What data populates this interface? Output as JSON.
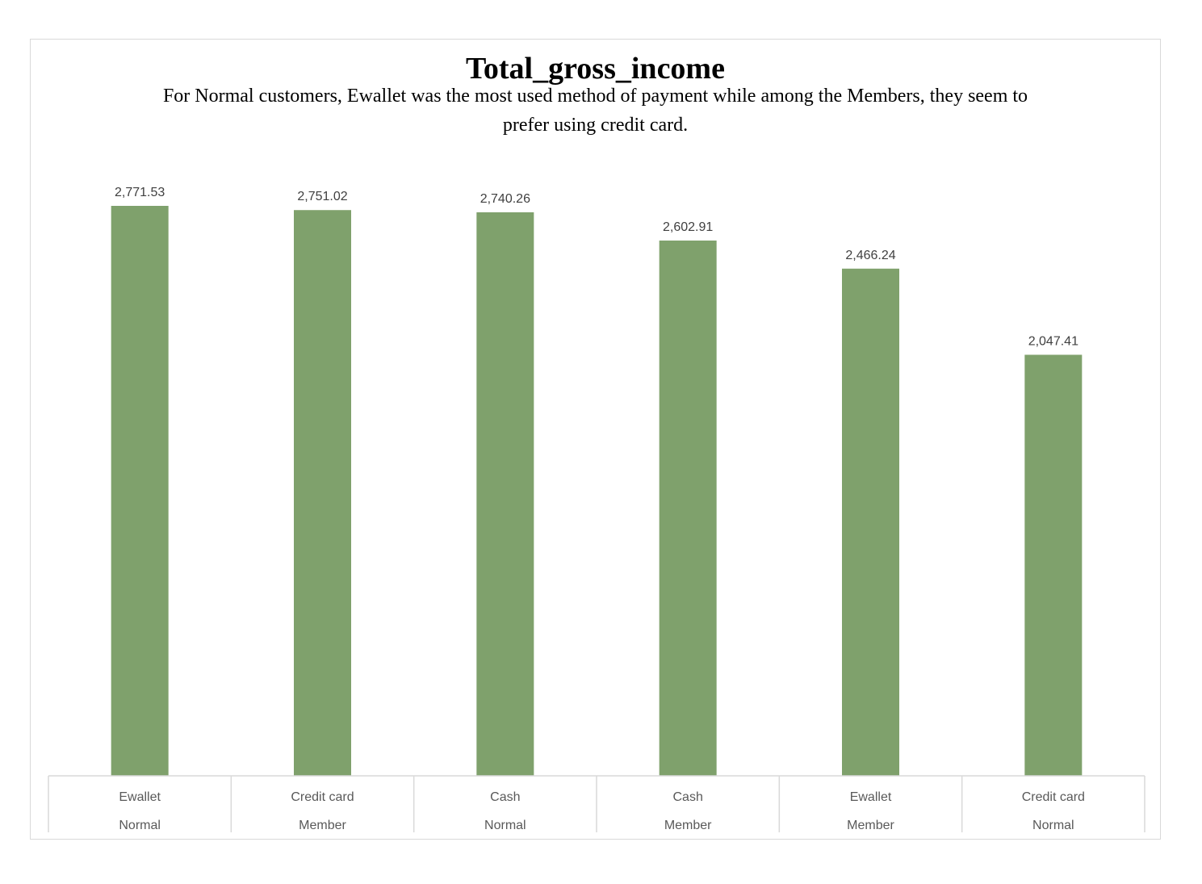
{
  "chart_data": {
    "type": "bar",
    "title": "Total_gross_income",
    "subtitle": "For Normal customers, Ewallet was the most used method of payment while among the Members, they seem to prefer using credit card.",
    "categories": [
      {
        "payment": "Ewallet",
        "customer_type": "Normal"
      },
      {
        "payment": "Credit card",
        "customer_type": "Member"
      },
      {
        "payment": "Cash",
        "customer_type": "Normal"
      },
      {
        "payment": "Cash",
        "customer_type": "Member"
      },
      {
        "payment": "Ewallet",
        "customer_type": "Member"
      },
      {
        "payment": "Credit card",
        "customer_type": "Normal"
      }
    ],
    "values": [
      2771.53,
      2751.02,
      2740.26,
      2602.91,
      2466.24,
      2047.41
    ],
    "value_labels": [
      "2,771.53",
      "2,751.02",
      "2,740.26",
      "2,602.91",
      "2,466.24",
      "2,047.41"
    ],
    "ylim": [
      0,
      2771.53
    ],
    "grid": false,
    "legend": "none",
    "bar_color": "#7fa16c",
    "axis_color": "#d9d9d9"
  }
}
